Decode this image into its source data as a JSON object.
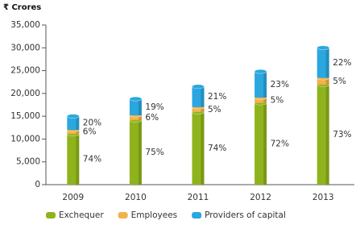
{
  "chart_data": {
    "type": "stacked_bar",
    "title": "₹ Crores",
    "categories": [
      "2009",
      "2010",
      "2011",
      "2012",
      "2013"
    ],
    "series": [
      {
        "name": "Exchequer",
        "color": "#8fb31c",
        "values": [
          11100,
          14100,
          15900,
          17900,
          21900
        ],
        "share_labels": [
          "74%",
          "75%",
          "74%",
          "72%",
          "73%"
        ]
      },
      {
        "name": "Employees",
        "color": "#f0b24a",
        "values": [
          900,
          1100,
          1100,
          1200,
          1500
        ],
        "share_labels": [
          "6%",
          "6%",
          "5%",
          "5%",
          "5%"
        ]
      },
      {
        "name": "Providers of capital",
        "color": "#2aa7df",
        "values": [
          3000,
          3600,
          4500,
          5700,
          6600
        ],
        "share_labels": [
          "20%",
          "19%",
          "21%",
          "23%",
          "22%"
        ]
      }
    ],
    "ylim": [
      0,
      35000
    ],
    "yticks": [
      0,
      {
        "value": 5000,
        "label": "5,000"
      },
      {
        "value": 10000,
        "label": "10,000"
      },
      {
        "value": 15000,
        "label": "15,000"
      },
      {
        "value": 20000,
        "label": "20,000"
      },
      {
        "value": 25000,
        "label": "25,000"
      },
      {
        "value": 30000,
        "label": "30,000"
      },
      {
        "value": 35000,
        "label": "35,000"
      }
    ],
    "grid": false
  }
}
